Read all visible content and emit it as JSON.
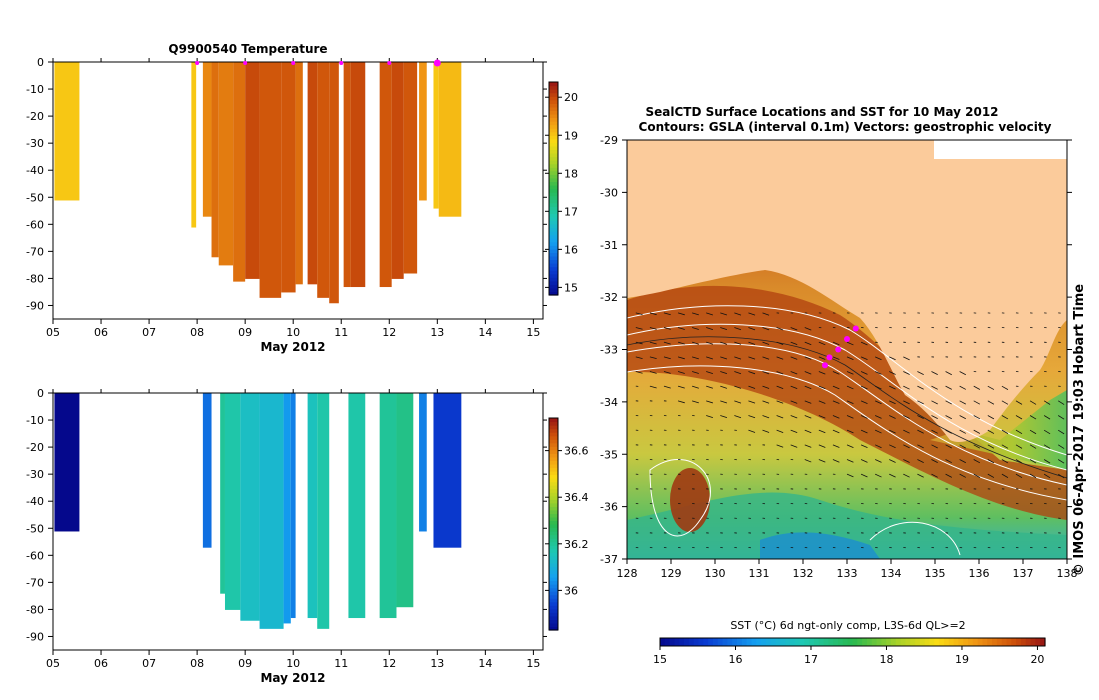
{
  "chart_data": [
    {
      "type": "heatmap",
      "title": "Q9900540  Temperature",
      "xlabel": "May 2012",
      "ylabel": "",
      "x_ticks": [
        "05",
        "06",
        "07",
        "08",
        "09",
        "10",
        "11",
        "12",
        "13",
        "14",
        "15"
      ],
      "y_ticks": [
        "0",
        "-10",
        "-20",
        "-30",
        "-40",
        "-50",
        "-60",
        "-70",
        "-80",
        "-90"
      ],
      "xlim": [
        5,
        15.2
      ],
      "ylim": [
        -95,
        0
      ],
      "colorbar": {
        "min": 14.8,
        "max": 20.4,
        "ticks": [
          "15",
          "16",
          "17",
          "18",
          "19",
          "20"
        ]
      },
      "surface_markers": [
        8.0,
        9.0,
        10.0,
        11.0,
        12.0,
        13.0
      ],
      "profiles": [
        {
          "x0": 5.03,
          "x1": 5.55,
          "depth": -51,
          "value": 19.0
        },
        {
          "x0": 7.88,
          "x1": 7.98,
          "depth": -61,
          "value": 19.0
        },
        {
          "x0": 8.12,
          "x1": 8.3,
          "depth": -57,
          "value": 19.5
        },
        {
          "x0": 8.3,
          "x1": 8.45,
          "depth": -72,
          "value": 19.7
        },
        {
          "x0": 8.45,
          "x1": 8.75,
          "depth": -75,
          "value": 19.6
        },
        {
          "x0": 8.75,
          "x1": 9.0,
          "depth": -81,
          "value": 19.7
        },
        {
          "x0": 9.0,
          "x1": 9.3,
          "depth": -80,
          "value": 20.0
        },
        {
          "x0": 9.3,
          "x1": 9.75,
          "depth": -87,
          "value": 19.9
        },
        {
          "x0": 9.75,
          "x1": 10.05,
          "depth": -85,
          "value": 19.9
        },
        {
          "x0": 10.05,
          "x1": 10.2,
          "depth": -82,
          "value": 19.7
        },
        {
          "x0": 10.3,
          "x1": 10.5,
          "depth": -82,
          "value": 20.0
        },
        {
          "x0": 10.5,
          "x1": 10.75,
          "depth": -87,
          "value": 19.9
        },
        {
          "x0": 10.75,
          "x1": 10.95,
          "depth": -89,
          "value": 19.9
        },
        {
          "x0": 11.05,
          "x1": 11.2,
          "depth": -83,
          "value": 19.9
        },
        {
          "x0": 11.2,
          "x1": 11.5,
          "depth": -83,
          "value": 20.0
        },
        {
          "x0": 11.8,
          "x1": 12.05,
          "depth": -83,
          "value": 19.9
        },
        {
          "x0": 12.05,
          "x1": 12.3,
          "depth": -80,
          "value": 20.0
        },
        {
          "x0": 12.3,
          "x1": 12.58,
          "depth": -78,
          "value": 19.9
        },
        {
          "x0": 12.62,
          "x1": 12.78,
          "depth": -51,
          "value": 19.4
        },
        {
          "x0": 12.92,
          "x1": 13.03,
          "depth": -54,
          "value": 19.0
        },
        {
          "x0": 13.03,
          "x1": 13.5,
          "depth": -57,
          "value": 19.1
        }
      ]
    },
    {
      "type": "heatmap",
      "title": "",
      "xlabel": "May 2012",
      "ylabel": "",
      "x_ticks": [
        "05",
        "06",
        "07",
        "08",
        "09",
        "10",
        "11",
        "12",
        "13",
        "14",
        "15"
      ],
      "y_ticks": [
        "0",
        "-10",
        "-20",
        "-30",
        "-40",
        "-50",
        "-60",
        "-70",
        "-80",
        "-90"
      ],
      "xlim": [
        5,
        15.2
      ],
      "ylim": [
        -95,
        0
      ],
      "colorbar": {
        "min": 35.83,
        "max": 36.74,
        "ticks": [
          "36",
          "36.2",
          "36.4",
          "36.6"
        ]
      },
      "profiles": [
        {
          "x0": 5.03,
          "x1": 5.55,
          "depth": -51,
          "value": 35.83
        },
        {
          "x0": 8.12,
          "x1": 8.3,
          "depth": -57,
          "value": 36.0
        },
        {
          "x0": 8.48,
          "x1": 8.58,
          "depth": -74,
          "value": 36.2
        },
        {
          "x0": 8.58,
          "x1": 8.9,
          "depth": -80,
          "value": 36.18
        },
        {
          "x0": 8.9,
          "x1": 9.3,
          "depth": -84,
          "value": 36.14
        },
        {
          "x0": 9.3,
          "x1": 9.8,
          "depth": -87,
          "value": 36.12
        },
        {
          "x0": 9.8,
          "x1": 9.95,
          "depth": -85,
          "value": 36.05
        },
        {
          "x0": 9.95,
          "x1": 10.05,
          "depth": -83,
          "value": 36.02
        },
        {
          "x0": 10.3,
          "x1": 10.5,
          "depth": -83,
          "value": 36.15
        },
        {
          "x0": 10.5,
          "x1": 10.75,
          "depth": -87,
          "value": 36.18
        },
        {
          "x0": 11.15,
          "x1": 11.5,
          "depth": -83,
          "value": 36.18
        },
        {
          "x0": 11.8,
          "x1": 12.15,
          "depth": -83,
          "value": 36.2
        },
        {
          "x0": 12.15,
          "x1": 12.5,
          "depth": -79,
          "value": 36.22
        },
        {
          "x0": 12.62,
          "x1": 12.78,
          "depth": -51,
          "value": 36.02
        },
        {
          "x0": 12.92,
          "x1": 13.5,
          "depth": -57,
          "value": 35.93
        }
      ]
    },
    {
      "type": "heatmap",
      "title": "SealCTD Surface Locations and SST for 10 May 2012",
      "subtitle": "Contours: GSLA (interval 0.1m) Vectors: geostrophic velocity",
      "xlabel": "",
      "ylabel": "",
      "x_ticks": [
        "128",
        "129",
        "130",
        "131",
        "132",
        "133",
        "134",
        "135",
        "136",
        "137",
        "138"
      ],
      "y_ticks": [
        "-29",
        "-30",
        "-31",
        "-32",
        "-33",
        "-34",
        "-35",
        "-36",
        "-37"
      ],
      "xlim": [
        128,
        138
      ],
      "ylim": [
        -37,
        -29
      ],
      "side_label": "© IMOS 06-Apr-2017 19:03 Hobart Time",
      "colorbar": {
        "label": "SST (°C) 6d ngt-only comp, L3S-6d QL>=2",
        "min": 15,
        "max": 20.1,
        "ticks": [
          "15",
          "16",
          "17",
          "18",
          "19",
          "20"
        ]
      },
      "seal_locations": [
        {
          "lon": 132.5,
          "lat": -33.3
        },
        {
          "lon": 132.6,
          "lat": -33.15
        },
        {
          "lon": 132.8,
          "lat": -33.0
        },
        {
          "lon": 133.0,
          "lat": -32.8
        },
        {
          "lon": 133.2,
          "lat": -32.6
        }
      ]
    }
  ],
  "colors": {
    "land": "#fbcb9b",
    "marker": "#ff00ff",
    "axis": "#000000"
  }
}
